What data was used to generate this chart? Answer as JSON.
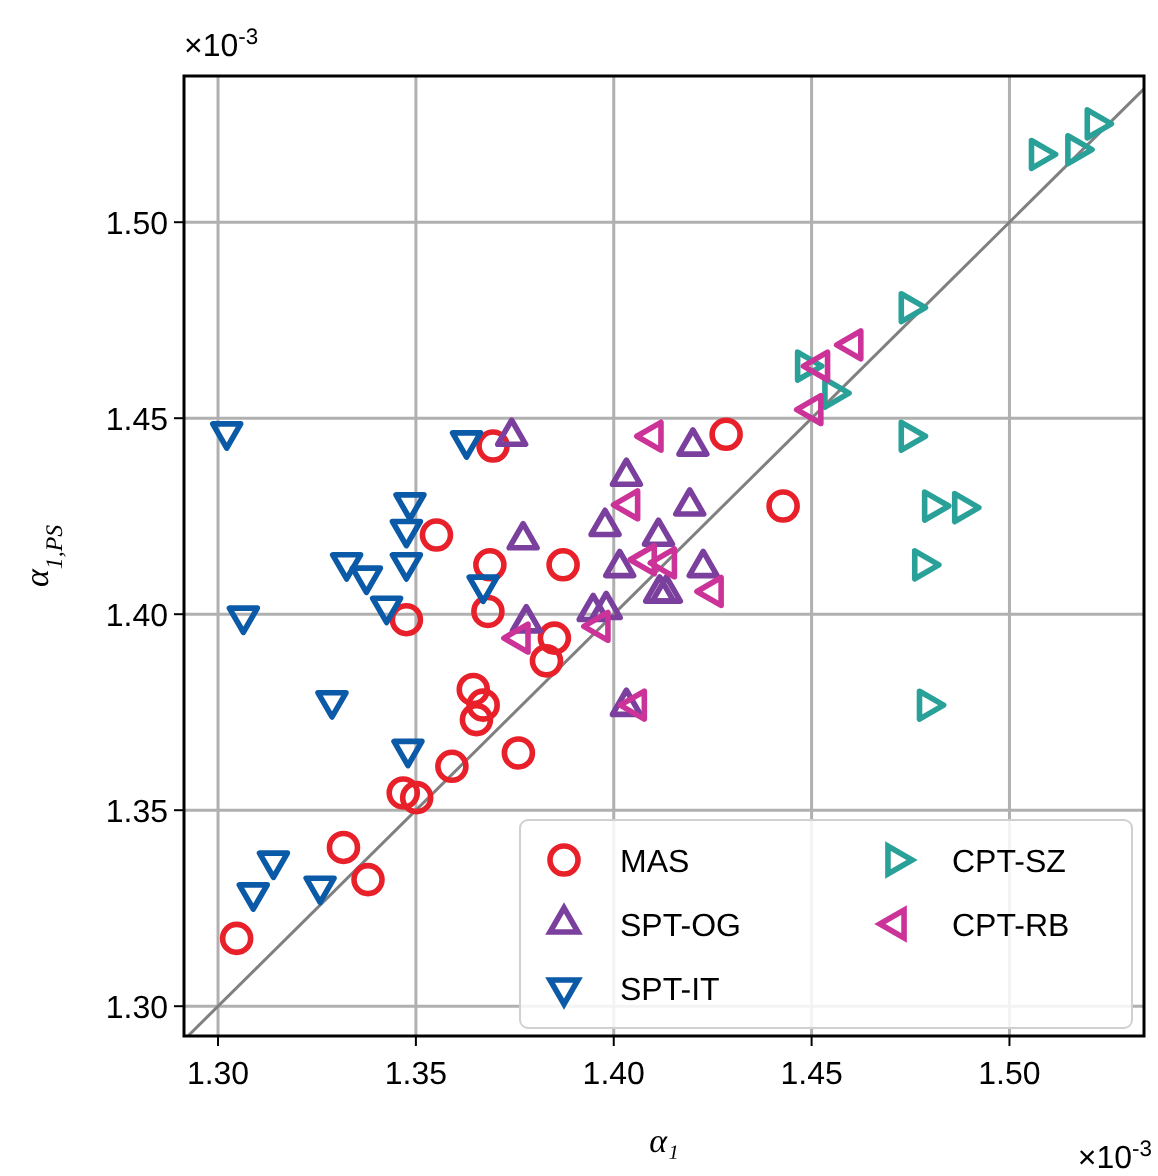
{
  "chart_data": {
    "type": "scatter",
    "xlabel": "α₁",
    "ylabel": "α$_{1,PS}$",
    "annotations": [
      "×10$^{-3}$",
      "×10$^{-3}$"
    ],
    "xlim": [
      1.2914,
      1.534
    ],
    "ylim": [
      1.2924,
      1.5373
    ],
    "xticks": [
      {
        "value": 1.3,
        "label": "1.30"
      },
      {
        "value": 1.35,
        "label": "1.35"
      },
      {
        "value": 1.4,
        "label": "1.40"
      },
      {
        "value": 1.45,
        "label": "1.45"
      },
      {
        "value": 1.5,
        "label": "1.50"
      }
    ],
    "yticks": [
      {
        "value": 1.3,
        "label": "1.30"
      },
      {
        "value": 1.35,
        "label": "1.35"
      },
      {
        "value": 1.4,
        "label": "1.40"
      },
      {
        "value": 1.45,
        "label": "1.45"
      },
      {
        "value": 1.5,
        "label": "1.50"
      }
    ],
    "grid": true,
    "legend": "bottom right",
    "series": [
      {
        "type": "line",
        "color": "#808080",
        "x": [
          1.2924,
          1.534
        ],
        "values": [
          1.2924,
          1.534
        ]
      },
      {
        "name": "MAS",
        "color": "#e8202a",
        "marker": "circle",
        "x": [
          1.3047,
          1.3317,
          1.3379,
          1.3468,
          1.3502,
          1.3591,
          1.3759,
          1.3645,
          1.367,
          1.3653,
          1.3476,
          1.3552,
          1.3687,
          1.3682,
          1.3872,
          1.385,
          1.383,
          1.3695,
          1.4284,
          1.4428
        ],
        "values": [
          1.3173,
          1.3405,
          1.3323,
          1.3544,
          1.3532,
          1.3612,
          1.3646,
          1.3808,
          1.3768,
          1.3731,
          1.3986,
          1.4202,
          1.4126,
          1.4007,
          1.4126,
          1.3939,
          1.3881,
          1.4429,
          1.4459,
          1.4276
        ]
      },
      {
        "name": "SPT-OG",
        "color": "#7b3f9e",
        "marker": "triangle",
        "x": [
          1.3742,
          1.3771,
          1.3779,
          1.4032,
          1.3978,
          1.4015,
          1.3948,
          1.3981,
          1.4113,
          1.42,
          1.4192,
          1.4226,
          1.4116,
          1.4133,
          1.4032
        ],
        "values": [
          1.4454,
          1.419,
          1.3978,
          1.4352,
          1.4224,
          1.4119,
          1.4007,
          1.4012,
          1.4199,
          1.4429,
          1.4276,
          1.4119,
          1.4054,
          1.4054,
          1.3765
        ]
      },
      {
        "name": "SPT-IT",
        "color": "#0a5aa8",
        "marker": "triangle-down",
        "x": [
          1.3022,
          1.3485,
          1.3476,
          1.3476,
          1.3325,
          1.3375,
          1.3426,
          1.367,
          1.3064,
          1.3288,
          1.348,
          1.314,
          1.3089,
          1.3258,
          1.3628
        ],
        "values": [
          1.4465,
          1.4284,
          1.4216,
          1.4131,
          1.4131,
          1.4097,
          1.402,
          1.4074,
          1.3995,
          1.3779,
          1.3655,
          1.337,
          1.3289,
          1.3306,
          1.4442
        ]
      },
      {
        "name": "CPT-SZ",
        "color": "#2aa198",
        "marker": "triangle-right",
        "x": [
          1.5076,
          1.5168,
          1.5217,
          1.4747,
          1.4554,
          1.4485,
          1.4747,
          1.4806,
          1.4882,
          1.4781,
          1.4793
        ],
        "values": [
          1.5173,
          1.5185,
          1.5251,
          1.4782,
          1.4564,
          1.4633,
          1.4454,
          1.4276,
          1.4272,
          1.4126,
          1.3768
        ]
      },
      {
        "name": "CPT-RB",
        "color": "#cc3399",
        "marker": "triangle-left",
        "x": [
          1.4099,
          1.404,
          1.4082,
          1.4133,
          1.4251,
          1.3965,
          1.3763,
          1.4057,
          1.4503,
          1.452,
          1.4604
        ],
        "values": [
          1.4454,
          1.4279,
          1.4139,
          1.4131,
          1.4058,
          1.3969,
          1.3939,
          1.3768,
          1.4522,
          1.4633,
          1.4687
        ]
      }
    ]
  }
}
